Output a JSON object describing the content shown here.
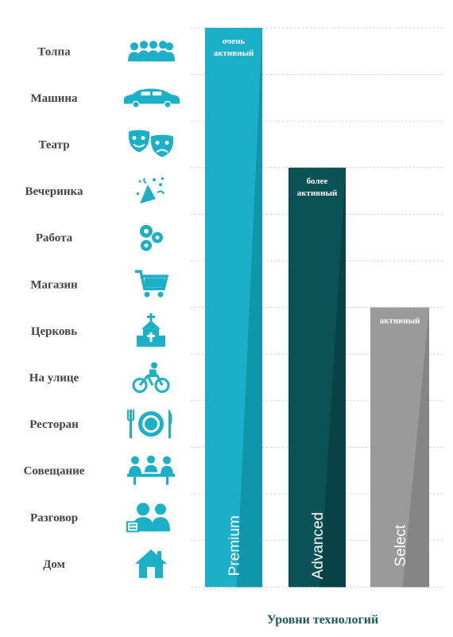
{
  "chart_data": {
    "type": "bar",
    "categories": [
      "Толпа",
      "Машина",
      "Театр",
      "Вечеринка",
      "Работа",
      "Магазин",
      "Церковь",
      "На улице",
      "Ресторан",
      "Совещание",
      "Разговор",
      "Дом"
    ],
    "icons": [
      "crowd-icon",
      "car-icon",
      "theater-masks-icon",
      "party-icon",
      "gears-icon",
      "shopping-cart-icon",
      "church-icon",
      "cyclist-icon",
      "plate-cutlery-icon",
      "meeting-icon",
      "conversation-icon",
      "house-icon"
    ],
    "series": [
      {
        "name": "Premium",
        "value": 12,
        "label": [
          "очень",
          "активный"
        ],
        "color": "#1bb0c7",
        "color_dark": "#0f96ab"
      },
      {
        "name": "Advanced",
        "value": 9,
        "label": [
          "более",
          "активный"
        ],
        "color": "#0b5257",
        "color_dark": "#084246"
      },
      {
        "name": "Select",
        "value": 6,
        "label": [
          "активный"
        ],
        "color": "#9a9a9a",
        "color_dark": "#858585"
      }
    ],
    "xlabel": "Уровни технологий",
    "grid": true
  }
}
